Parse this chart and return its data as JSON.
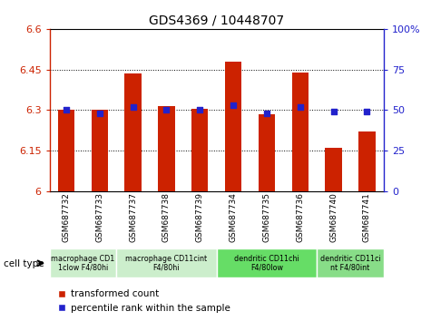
{
  "title": "GDS4369 / 10448707",
  "samples": [
    "GSM687732",
    "GSM687733",
    "GSM687737",
    "GSM687738",
    "GSM687739",
    "GSM687734",
    "GSM687735",
    "GSM687736",
    "GSM687740",
    "GSM687741"
  ],
  "bar_values": [
    6.3,
    6.3,
    6.435,
    6.315,
    6.305,
    6.48,
    6.285,
    6.44,
    6.16,
    6.22
  ],
  "dot_values": [
    50,
    48,
    52,
    50,
    50,
    53,
    48,
    52,
    49,
    49
  ],
  "ylim_left": [
    6.0,
    6.6
  ],
  "ylim_right": [
    0,
    100
  ],
  "yticks_left": [
    6.0,
    6.15,
    6.3,
    6.45,
    6.6
  ],
  "yticks_right": [
    0,
    25,
    50,
    75,
    100
  ],
  "ytick_labels_left": [
    "6",
    "6.15",
    "6.3",
    "6.45",
    "6.6"
  ],
  "ytick_labels_right": [
    "0",
    "25",
    "50",
    "75",
    "100%"
  ],
  "bar_color": "#cc2200",
  "dot_color": "#2222cc",
  "plot_bg": "#ffffff",
  "cell_type_groups": [
    {
      "label": "macrophage CD1\n1clow F4/80hi",
      "start": 0,
      "end": 2,
      "color": "#cceecc"
    },
    {
      "label": "macrophage CD11cint\nF4/80hi",
      "start": 2,
      "end": 5,
      "color": "#cceecc"
    },
    {
      "label": "dendritic CD11chi\nF4/80low",
      "start": 5,
      "end": 8,
      "color": "#66dd66"
    },
    {
      "label": "dendritic CD11ci\nnt F4/80int",
      "start": 8,
      "end": 10,
      "color": "#88dd88"
    }
  ],
  "legend_bar_label": "transformed count",
  "legend_dot_label": "percentile rank within the sample",
  "cell_type_label": "cell type",
  "bar_width": 0.5
}
